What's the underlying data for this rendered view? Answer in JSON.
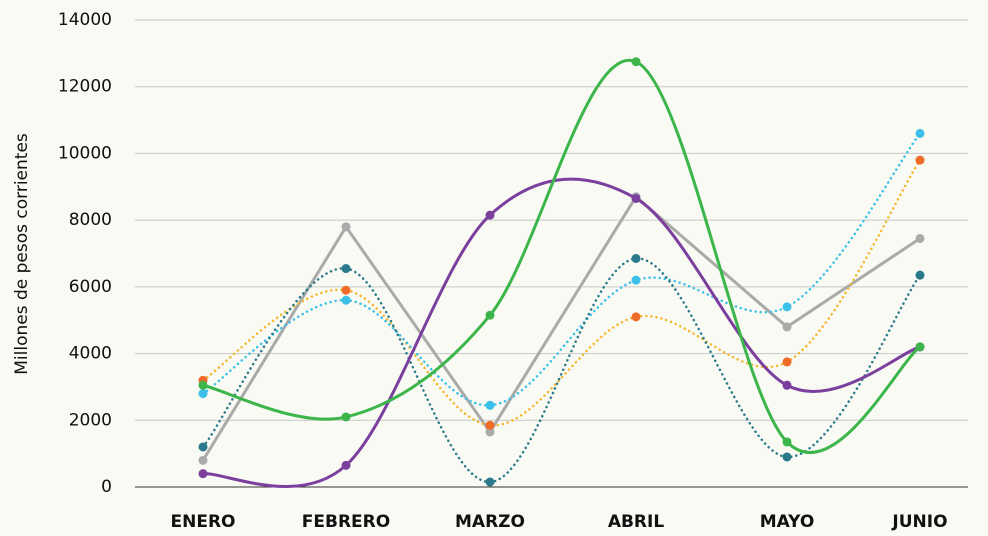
{
  "chart_data": {
    "type": "line",
    "y_label": "Millones de pesos corrientes",
    "categories": [
      "ENERO",
      "FEBRERO",
      "MARZO",
      "ABRIL",
      "MAYO",
      "JUNIO"
    ],
    "ylim": [
      0,
      14000
    ],
    "yticks": [
      0,
      2000,
      4000,
      6000,
      8000,
      10000,
      12000,
      14000
    ],
    "grid": true,
    "series": [
      {
        "color": "#aaaaaa",
        "marker_color": "#aaaaaa",
        "dotted": false,
        "smooth": false,
        "values": [
          800,
          7800,
          1650,
          8700,
          4800,
          7450
        ]
      },
      {
        "color": "#f5b82e",
        "marker_color": "#f06a28",
        "dotted": true,
        "smooth": true,
        "values": [
          3200,
          5900,
          1850,
          5100,
          3750,
          9800
        ]
      },
      {
        "color": "#3cc0ea",
        "marker_color": "#3cc0ea",
        "dotted": true,
        "smooth": true,
        "values": [
          2800,
          5600,
          2450,
          6200,
          5400,
          10600
        ]
      },
      {
        "color": "#2a7a8c",
        "marker_color": "#2a7a8c",
        "dotted": true,
        "smooth": true,
        "values": [
          1200,
          6550,
          150,
          6850,
          900,
          6350
        ]
      },
      {
        "color": "#7b3f9e",
        "marker_color": "#7b3f9e",
        "dotted": false,
        "smooth": true,
        "values": [
          400,
          650,
          8150,
          8650,
          3050,
          4200
        ]
      },
      {
        "color": "#3cb54a",
        "marker_color": "#3cb54a",
        "dotted": false,
        "smooth": true,
        "values": [
          3050,
          2100,
          5150,
          12750,
          1350,
          4200
        ]
      }
    ]
  }
}
